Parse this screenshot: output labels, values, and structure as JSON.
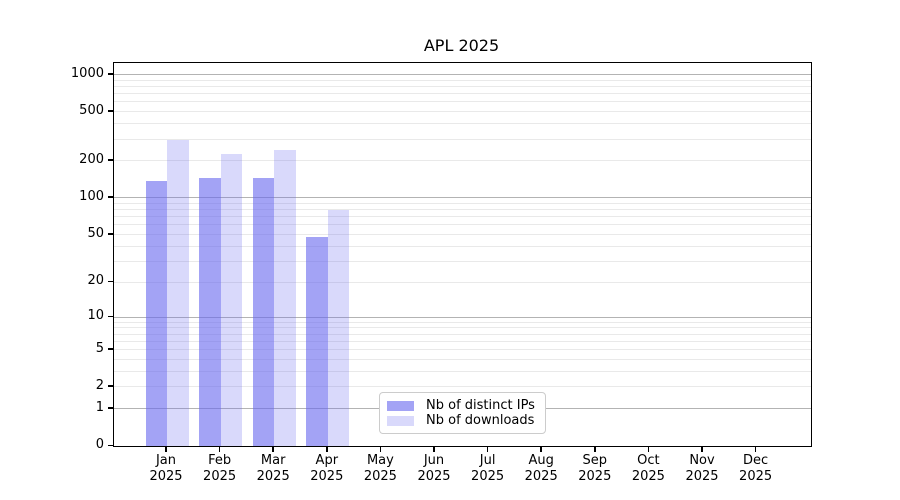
{
  "title": "APL 2025",
  "chart_data": {
    "type": "bar",
    "title": "APL 2025",
    "categories": [
      "Jan",
      "Feb",
      "Mar",
      "Apr",
      "May",
      "Jun",
      "Jul",
      "Aug",
      "Sep",
      "Oct",
      "Nov",
      "Dec"
    ],
    "category_year": "2025",
    "series": [
      {
        "name": "Nb of distinct IPs",
        "color": "rgba(102,102,238,0.6)",
        "values": [
          136,
          144,
          144,
          48,
          0,
          0,
          0,
          0,
          0,
          0,
          0,
          0
        ]
      },
      {
        "name": "Nb of downloads",
        "color": "rgba(102,102,238,0.25)",
        "values": [
          295,
          229,
          244,
          79,
          0,
          0,
          0,
          0,
          0,
          0,
          0,
          0
        ]
      }
    ],
    "y_axis": {
      "scale": "log1p",
      "tick_values": [
        0,
        1,
        2,
        5,
        10,
        20,
        50,
        100,
        200,
        500,
        1000
      ],
      "tick_labels": [
        "0",
        "1",
        "2",
        "5",
        "10",
        "20",
        "50",
        "100",
        "200",
        "500",
        "1000"
      ],
      "major_grid_values": [
        1,
        10,
        100,
        1000
      ],
      "minor_grid_values": [
        2,
        3,
        4,
        5,
        6,
        7,
        8,
        9,
        20,
        30,
        40,
        50,
        60,
        70,
        80,
        90,
        200,
        300,
        400,
        500,
        600,
        700,
        800,
        900
      ]
    },
    "grid": "both",
    "legend_position": "lower-center-inside"
  },
  "colors": {
    "bar_base": "#6666ee",
    "major_grid": "#b3b3b3",
    "minor_grid": "#e9e9e9",
    "spine": "#000000",
    "legend_border": "#cccccc",
    "background": "#ffffff"
  }
}
